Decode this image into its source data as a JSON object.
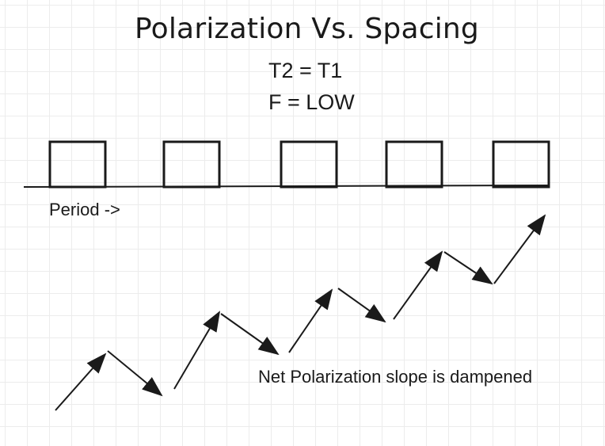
{
  "title": "Polarization Vs. Spacing",
  "equations": {
    "line1": "T2 = T1",
    "line2": "F = LOW"
  },
  "axis_label": "Period ->",
  "caption": "Net Polarization slope is dampened",
  "colors": {
    "ink": "#1a1a1a",
    "grid": "#ececec",
    "background": "#ffffff"
  }
}
